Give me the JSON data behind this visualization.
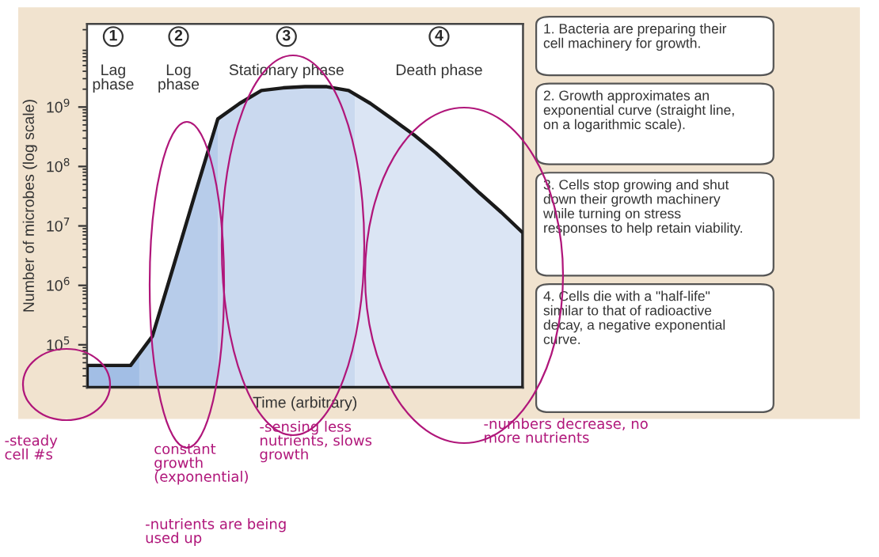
{
  "chart_data": {
    "type": "area",
    "xlabel": "Time (arbitrary)",
    "ylabel": "Number of microbes (log scale)",
    "categories": [
      null,
      null,
      null,
      null,
      null,
      null,
      null,
      null,
      null,
      null,
      null,
      null,
      null,
      null,
      null,
      null,
      null,
      null,
      null,
      null,
      null
    ],
    "series": [
      {
        "color": "#1a1a1a",
        "values": [
          45000,
          45000,
          45000,
          140000,
          2300000,
          39000000,
          630000000,
          1150000000,
          1900000000,
          2100000000,
          2200000000,
          2200000000,
          1900000000,
          1150000000,
          630000000,
          340000000,
          170000000,
          79000000,
          36000000,
          17000000,
          7600000
        ]
      }
    ],
    "log": true,
    "ylim": [
      19000,
      25000000000
    ],
    "yticks": [
      {
        "value": 100000,
        "label": "10$^{5}$"
      },
      {
        "value": 1000000,
        "label": "10$^{6}$"
      },
      {
        "value": 10000000,
        "label": "10$^{7}$"
      },
      {
        "value": 100000000,
        "label": "10$^{8}$"
      },
      {
        "value": 1000000000,
        "label": "10$^{9}$"
      }
    ],
    "annotations": [
      "1\nLag\nphase",
      "2\nLog\nphase",
      "3\nStationary phase",
      "4\nDeath phase",
      "1. Bacteria are preparing their\ncell machinery for growth.",
      "2. Growth approximates an\nexponential curve (straight line,\non a logarithmic scale).",
      "3. Cells stop growing and shut\ndown their growth machinery\nwhile turning on stress\nresponses to help retain viability.",
      "4. Cells die with a \"half-life\"\nsimilar to that of radioactive\ndecay, a negative exponential\ncurve.",
      "-steady\ncell #s",
      "constant\ngrowth\n(exponential)",
      "-nutrients are being\nused up",
      "-sensing less\nnutrients, slows\ngrowth",
      "-numbers decrease, no\nmore nutrients"
    ],
    "grid": false,
    "legend": false
  }
}
